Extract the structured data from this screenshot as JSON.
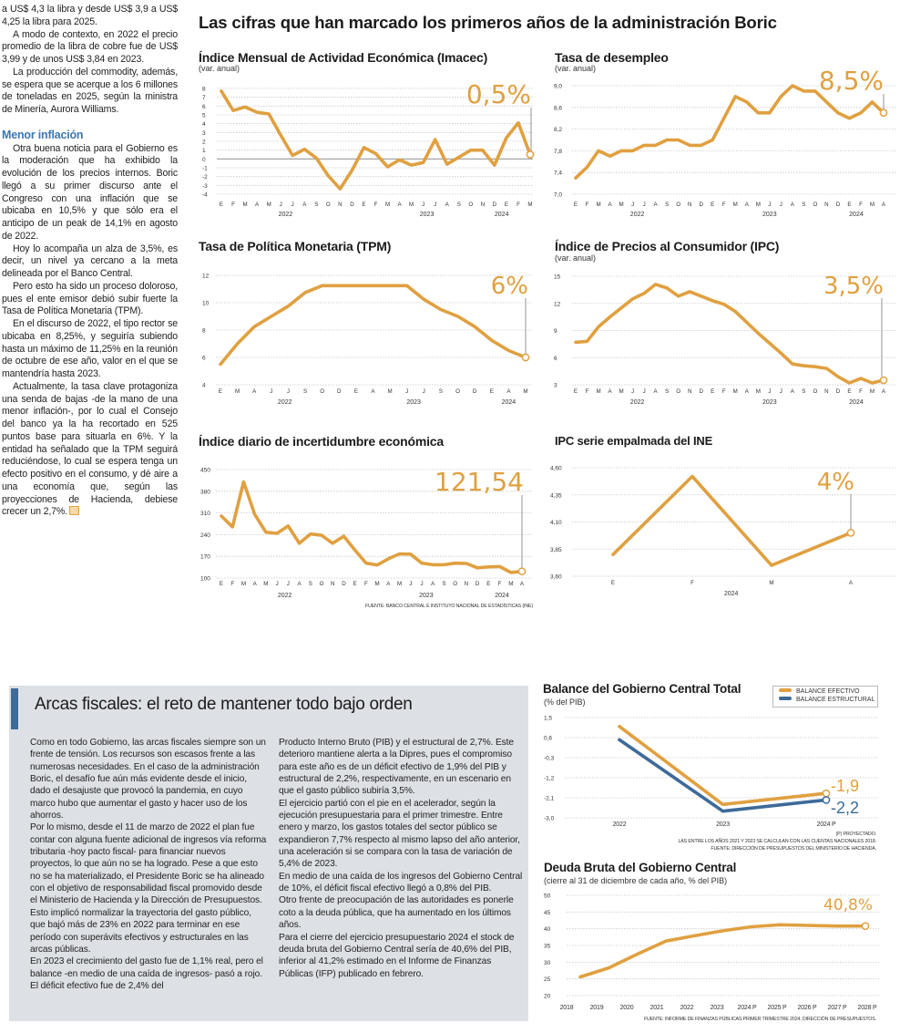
{
  "headline": "Las cifras que han marcado los primeros años de la administración Boric",
  "left_column": {
    "paragraphs_before": [
      "a US$ 4,3 la libra y desde US$ 3,9 a US$ 4,25 la libra para 2025.",
      "A modo de contexto, en 2022 el precio promedio de la libra de cobre fue de US$ 3,99 y de unos US$ 3,84 en 2023.",
      "La producción del commodity, además, se espera que se acerque a los 6 millones de toneladas en 2025, según la ministra de Minería, Aurora Williams."
    ],
    "subheading": "Menor inflación",
    "paragraphs_after": [
      "Otra buena noticia para el Gobierno es la moderación que ha exhibido la evolución de los precios internos. Boric llegó a su primer discurso ante el Congreso con una inflación que se ubicaba en 10,5% y que sólo era el anticipo de un peak de 14,1% en agosto de 2022.",
      "Hoy lo acompaña un alza de 3,5%, es decir, un nivel ya cercano a la meta delineada por el Banco Central.",
      "Pero esto ha sido un proceso doloroso, pues el ente emisor debió subir fuerte la Tasa de Política Monetaria (TPM).",
      "En el discurso de 2022, el tipo rector se ubicaba en 8,25%, y seguiría subiendo hasta un máximo de 11,25% en la reunión de octubre de ese año, valor en el que se mantendría hasta 2023.",
      "Actualmente, la tasa clave protagoniza una senda de bajas -de la mano de una menor inflación-, por lo cual el Consejo del banco ya la ha recortado en 525 puntos base para situarla en 6%. Y la entidad ha señalado que la TPM seguirá reduciéndose, lo cual se espera tenga un efecto positivo en el consumo, y dé aire a una economía que, según las proyecciones de Hacienda, debiese crecer un 2,7%."
    ]
  },
  "fiscal_box": {
    "heading": "Arcas fiscales: el reto de mantener todo bajo orden",
    "accent_color": "#3d6a99",
    "col1": [
      "Como en todo Gobierno, las arcas fiscales siempre son un frente de tensión. Los recursos son escasos frente a las numerosas necesidades. En el caso de la administración Boric, el desafío fue aún más evidente desde el inicio, dado el desajuste que provocó la pandemia, en cuyo marco hubo que aumentar el gasto y hacer uso de los ahorros.",
      "Por lo mismo, desde el 11 de marzo de 2022 el plan fue contar con alguna fuente adicional de ingresos vía reforma tributaria -hoy pacto fiscal- para financiar nuevos proyectos, lo que aún no se ha logrado. Pese a que esto no se ha materializado, el Presidente Boric se ha alineado con el objetivo de responsabilidad fiscal promovido desde el Ministerio de Hacienda y la Dirección de Presupuestos. Esto implicó normalizar la trayectoria del gasto público, que bajó más de 23% en 2022 para terminar en ese período con superávits efectivos y estructurales en las arcas públicas.",
      "En 2023 el crecimiento del gasto fue de 1,1% real, pero el balance -en medio de una caída de ingresos- pasó a rojo. El déficit efectivo fue de 2,4% del"
    ],
    "col2": [
      "Producto Interno Bruto (PIB) y el estructural de 2,7%. Este deterioro mantiene alerta a la Dipres, pues el compromiso para este año es de un déficit efectivo de 1,9% del PIB y estructural de 2,2%, respectivamente, en un escenario en que el gasto público subiría 3,5%.",
      "El ejercicio partió con el pie en el acelerador, según la ejecución presupuestaria para el primer trimestre. Entre enero y marzo, los gastos totales del sector público se expandieron 7,7% respecto al mismo lapso del año anterior, una aceleración si se compara con la tasa de variación de 5,4% de 2023.",
      "En medio de una caída de los ingresos del Gobierno Central de 10%, el déficit fiscal efectivo llegó a 0,8% del PIB.",
      "Otro frente de preocupación de las autoridades es ponerle coto a la deuda pública, que ha aumentado en los últimos años.",
      "Para el cierre del ejercicio presupuestario 2024 el stock de deuda bruta del Gobierno Central sería de 40,6% del PIB, inferior al 41,2% estimado en el Informe de Finanzas Públicas (IFP) publicado en febrero."
    ]
  },
  "chart_data": [
    {
      "type": "line",
      "title": "Índice Mensual de Actividad Económica (Imacec)",
      "subtitle": "(var. anual)",
      "ylim": [
        -4,
        8
      ],
      "yticks": [
        "8",
        "7",
        "6",
        "5",
        "4",
        "3",
        "2",
        "1",
        "0",
        "-1",
        "-2",
        "-3",
        "-4"
      ],
      "x": [
        "E",
        "F",
        "M",
        "A",
        "M",
        "J",
        "J",
        "A",
        "S",
        "O",
        "N",
        "D",
        "E",
        "F",
        "M",
        "A",
        "M",
        "J",
        "J",
        "A",
        "S",
        "O",
        "N",
        "D",
        "E",
        "F",
        "M"
      ],
      "years": [
        "2022",
        "2023",
        "2024"
      ],
      "values": [
        7.7,
        5.5,
        5.9,
        5.3,
        5.1,
        2.7,
        0.4,
        1.1,
        0.1,
        -1.9,
        -3.4,
        -1.3,
        1.3,
        0.6,
        -0.9,
        -0.1,
        -0.7,
        -0.4,
        2.2,
        -0.6,
        0.2,
        1.0,
        1.0,
        -0.7,
        2.4,
        4.1,
        0.5
      ],
      "callout": "0,5%",
      "color": "#e0a040",
      "zero_line": true
    },
    {
      "type": "line",
      "title": "Tasa de desempleo",
      "subtitle": "(var. anual)",
      "ylim": [
        7.0,
        9.0
      ],
      "yticks": [
        "9,0",
        "8,6",
        "8,2",
        "7,8",
        "7,4",
        "7,0"
      ],
      "x": [
        "E",
        "F",
        "M",
        "A",
        "M",
        "J",
        "J",
        "A",
        "S",
        "O",
        "N",
        "D",
        "E",
        "F",
        "M",
        "A",
        "M",
        "J",
        "J",
        "A",
        "S",
        "O",
        "N",
        "D",
        "E",
        "F",
        "M",
        "A"
      ],
      "years": [
        "2022",
        "2023",
        "2024"
      ],
      "values": [
        7.3,
        7.5,
        7.8,
        7.7,
        7.8,
        7.8,
        7.9,
        7.9,
        8.0,
        8.0,
        7.9,
        7.9,
        8.0,
        8.4,
        8.8,
        8.7,
        8.5,
        8.5,
        8.8,
        9.0,
        8.9,
        8.9,
        8.7,
        8.5,
        8.4,
        8.5,
        8.7,
        8.5
      ],
      "callout": "8,5%",
      "color": "#e0a040"
    },
    {
      "type": "line",
      "title": "Tasa de Política Monetaria (TPM)",
      "ylim": [
        4,
        12
      ],
      "yticks": [
        "12",
        "10",
        "8",
        "6",
        "4"
      ],
      "x": [
        "E",
        "M",
        "A",
        "J",
        "J",
        "S",
        "O",
        "D",
        "E",
        "A",
        "M",
        "J",
        "J",
        "S",
        "O",
        "D",
        "E",
        "A",
        "M"
      ],
      "years": [
        "2022",
        "2023",
        "2024"
      ],
      "values": [
        5.5,
        7.0,
        8.25,
        9.0,
        9.75,
        10.75,
        11.25,
        11.25,
        11.25,
        11.25,
        11.25,
        11.25,
        10.25,
        9.5,
        9.0,
        8.25,
        7.25,
        6.5,
        6.0
      ],
      "callout": "6%",
      "color": "#e0a040"
    },
    {
      "type": "line",
      "title": "Índice de Precios al Consumidor (IPC)",
      "subtitle": "(var. anual)",
      "ylim": [
        3,
        15
      ],
      "yticks": [
        "15",
        "12",
        "9",
        "6",
        "3"
      ],
      "x": [
        "E",
        "F",
        "M",
        "A",
        "M",
        "J",
        "J",
        "A",
        "S",
        "O",
        "N",
        "D",
        "E",
        "F",
        "M",
        "A",
        "M",
        "J",
        "J",
        "A",
        "S",
        "O",
        "N",
        "D",
        "E",
        "F",
        "M",
        "A"
      ],
      "years": [
        "2022",
        "2023",
        "2024"
      ],
      "values": [
        7.7,
        7.8,
        9.4,
        10.5,
        11.5,
        12.5,
        13.1,
        14.1,
        13.7,
        12.8,
        13.3,
        12.8,
        12.3,
        11.9,
        11.1,
        9.9,
        8.7,
        7.6,
        6.5,
        5.3,
        5.1,
        5.0,
        4.8,
        3.9,
        3.2,
        3.7,
        3.2,
        3.5
      ],
      "callout": "3,5%",
      "color": "#e0a040"
    },
    {
      "type": "line",
      "title": "Índice diario de incertidumbre económica",
      "ylim": [
        100,
        450
      ],
      "yticks": [
        "450",
        "380",
        "310",
        "240",
        "170",
        "100"
      ],
      "x": [
        "E",
        "F",
        "M",
        "A",
        "M",
        "J",
        "J",
        "A",
        "S",
        "O",
        "N",
        "D",
        "E",
        "F",
        "M",
        "A",
        "M",
        "J",
        "J",
        "A",
        "S",
        "O",
        "N",
        "D",
        "E",
        "F",
        "M",
        "A"
      ],
      "years": [
        "2022",
        "2023",
        "2024"
      ],
      "values": [
        300,
        265,
        410,
        305,
        248,
        244,
        268,
        212,
        242,
        238,
        212,
        235,
        190,
        148,
        142,
        162,
        178,
        177,
        148,
        143,
        143,
        148,
        147,
        133,
        136,
        137,
        118,
        121.54
      ],
      "callout": "121,54",
      "source": "FUENTE: BANCO CENTRAL E INSTITUTO NACIONAL DE ESTADÍSTICAS (INE)",
      "color": "#e0a040"
    },
    {
      "type": "line",
      "title": "IPC serie empalmada del INE",
      "ylim": [
        3.6,
        4.6
      ],
      "yticks": [
        "4,60",
        "4,35",
        "4,10",
        "3,85",
        "3,60"
      ],
      "x": [
        "E",
        "F",
        "M",
        "A"
      ],
      "years": [
        "2024"
      ],
      "values": [
        3.8,
        4.52,
        3.7,
        4.0
      ],
      "callout": "4%",
      "color": "#e0a040"
    },
    {
      "type": "line",
      "title": "Balance del Gobierno Central Total",
      "subtitle": "(% del PIB)",
      "ylim": [
        -3.0,
        1.5
      ],
      "yticks": [
        "1,5",
        "0,6",
        "-0,3",
        "-1,2",
        "-2,1",
        "-3,0"
      ],
      "x": [
        "2022",
        "2023",
        "2024 P"
      ],
      "series": [
        {
          "name": "BALANCE EFECTIVO",
          "values": [
            1.1,
            -2.4,
            -1.9
          ],
          "callout": "-1,9",
          "color": "#e0a040"
        },
        {
          "name": "BALANCE ESTRUCTURAL",
          "values": [
            0.5,
            -2.7,
            -2.2
          ],
          "callout": "-2,2",
          "color": "#3d6a99"
        }
      ],
      "legend": "top-right",
      "notes": [
        "(P) PROYECTADO.",
        "LAS ENTRE LOS AÑOS 2021 Y 2023 SE CALCULAN  CON LAS CUENTAS NACIONALES 2018.",
        "FUENTE: DIRECCIÓN DE PRESUPUESTOS DEL MINISTERIO DE HACIENDA."
      ]
    },
    {
      "type": "line",
      "title": "Deuda Bruta del Gobierno Central",
      "subtitle": "(cierre al 31 de diciembre de cada año, % del PIB)",
      "ylim": [
        20,
        50
      ],
      "yticks": [
        "50",
        "45",
        "40",
        "35",
        "30",
        "25",
        "20"
      ],
      "x": [
        "2018",
        "2019",
        "2020",
        "2021",
        "2022",
        "2023",
        "2024 P",
        "2025 P",
        "2026 P",
        "2027 P",
        "2028 P"
      ],
      "values": [
        25.6,
        28.3,
        32.4,
        36.3,
        37.9,
        39.4,
        40.6,
        41.2,
        41.0,
        40.8,
        40.8
      ],
      "callout": "40,8%",
      "source": "FUENTE: INFORME DE FINANZAS PÚBLICAS PRIMER TRIMESTRE 2024, DIRECCIÓN DE PRESUPUESTOS.",
      "color": "#e0a040"
    }
  ]
}
